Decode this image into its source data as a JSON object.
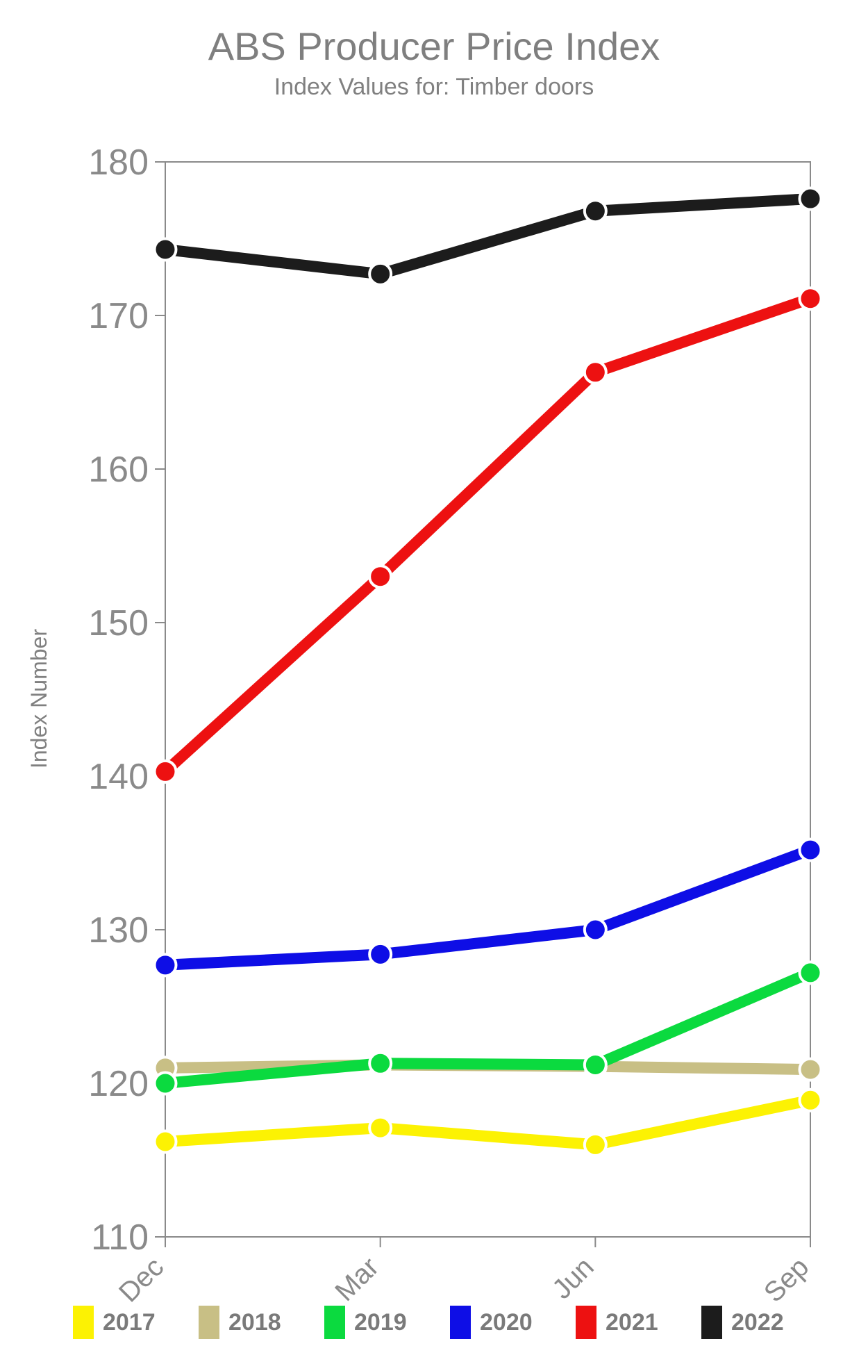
{
  "chart_data": {
    "type": "line",
    "title": "ABS Producer Price Index",
    "subtitle": "Index Values for: Timber doors",
    "ylabel": "Index Number",
    "xlabel": "",
    "categories": [
      "Dec",
      "Mar",
      "Jun",
      "Sep"
    ],
    "ylim": [
      110,
      180
    ],
    "yticks": [
      110,
      120,
      130,
      140,
      150,
      160,
      170,
      180
    ],
    "grid": false,
    "legend_position": "bottom",
    "axis_color": "#8a8a8a",
    "tick_label_color": "#8a8a8a",
    "series": [
      {
        "name": "2017",
        "color": "#FCF203",
        "values": [
          116.2,
          117.1,
          116.0,
          118.9
        ]
      },
      {
        "name": "2018",
        "color": "#C8BF85",
        "values": [
          121.0,
          121.2,
          121.1,
          120.9
        ]
      },
      {
        "name": "2019",
        "color": "#0BDA3F",
        "values": [
          120.0,
          121.3,
          121.2,
          127.2
        ]
      },
      {
        "name": "2020",
        "color": "#0E0EE6",
        "values": [
          127.7,
          128.4,
          130.0,
          135.2
        ]
      },
      {
        "name": "2021",
        "color": "#ED1111",
        "values": [
          140.3,
          153.0,
          166.3,
          171.1
        ]
      },
      {
        "name": "2022",
        "color": "#1C1C1C",
        "values": [
          174.3,
          172.7,
          176.8,
          177.6
        ]
      }
    ]
  }
}
